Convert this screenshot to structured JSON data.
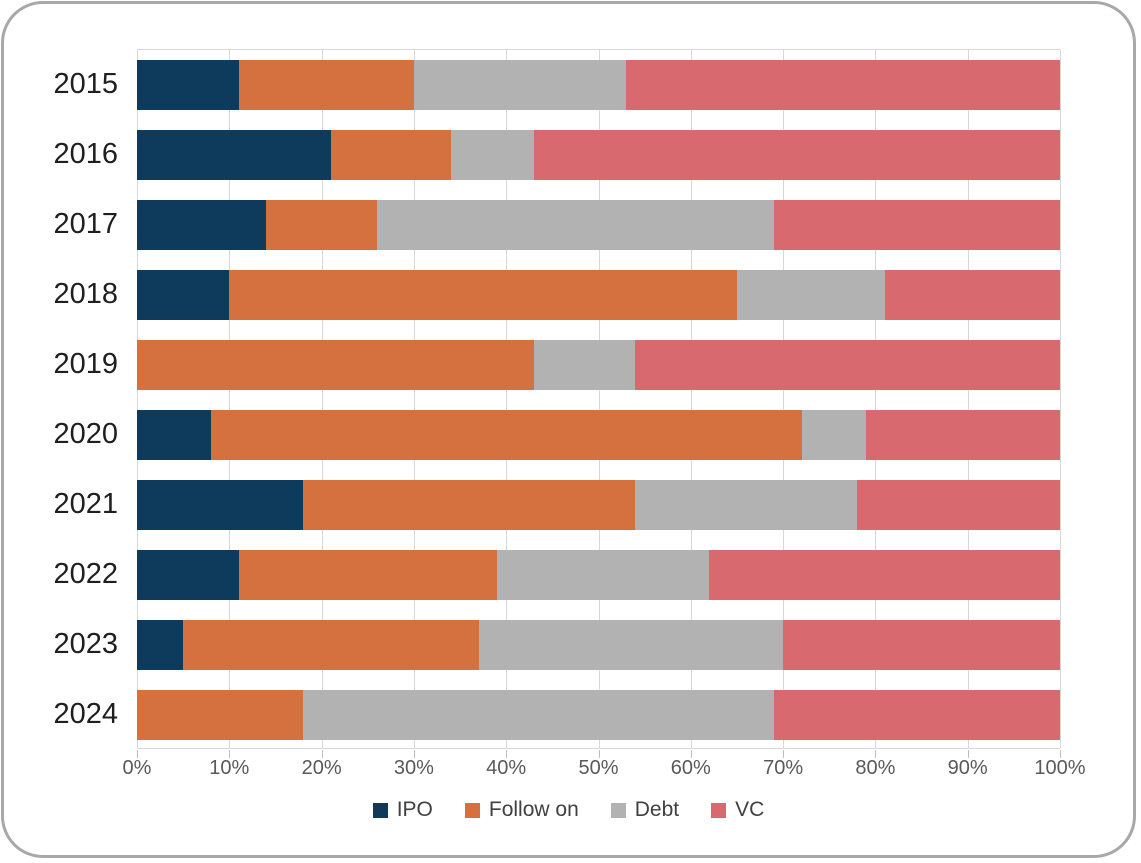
{
  "chart_data": {
    "type": "bar",
    "stacked": true,
    "orientation": "horizontal",
    "title": "",
    "categories": [
      "2015",
      "2016",
      "2017",
      "2018",
      "2019",
      "2020",
      "2021",
      "2022",
      "2023",
      "2024"
    ],
    "series": [
      {
        "name": "IPO",
        "color": "#0e3a5c",
        "values": [
          11,
          21,
          14,
          10,
          0,
          8,
          18,
          11,
          5,
          0
        ]
      },
      {
        "name": "Follow on",
        "color": "#d4713e",
        "values": [
          19,
          13,
          12,
          55,
          43,
          64,
          36,
          28,
          32,
          18
        ]
      },
      {
        "name": "Debt",
        "color": "#b2b2b2",
        "values": [
          23,
          9,
          43,
          16,
          11,
          7,
          24,
          23,
          33,
          51
        ]
      },
      {
        "name": "VC",
        "color": "#d8696f",
        "values": [
          47,
          57,
          31,
          19,
          46,
          21,
          22,
          38,
          30,
          31
        ]
      }
    ],
    "x_ticks": [
      "0%",
      "10%",
      "20%",
      "30%",
      "40%",
      "50%",
      "60%",
      "70%",
      "80%",
      "90%",
      "100%"
    ],
    "xlim": [
      0,
      100
    ],
    "xlabel": "",
    "ylabel": "",
    "grid": true,
    "legend_position": "bottom",
    "legend_labels": [
      "IPO",
      "Follow on",
      "Debt",
      "VC"
    ]
  },
  "style": {
    "card_border_color": "#a8a8a8",
    "gridline_color": "#d8d8d8",
    "tick_label_color": "#595959",
    "year_label_color": "#1f1f1f",
    "legend_text_color": "#404040",
    "background_color": "#ffffff"
  }
}
